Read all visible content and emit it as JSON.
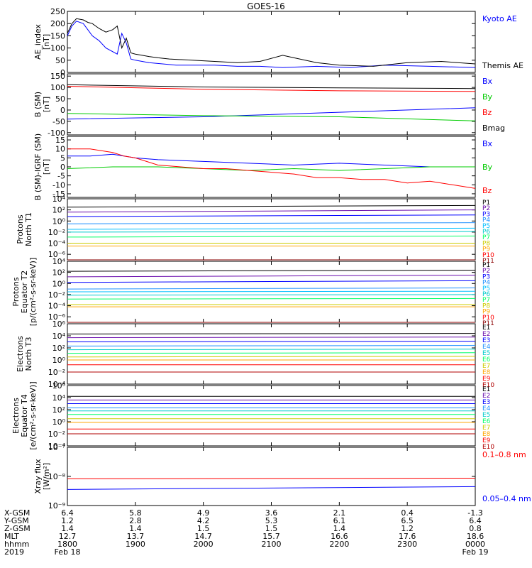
{
  "title": "GOES-16",
  "chart_data": [
    {
      "panel": "ae",
      "type": "line",
      "ylabel": [
        "AE_index",
        "[nT]"
      ],
      "ylim": [
        0,
        250
      ],
      "yscale": "linear",
      "yticks": [
        0,
        50,
        100,
        150,
        200,
        250
      ],
      "tick_labels": [
        "0",
        "50",
        "100",
        "150",
        "200",
        "250"
      ],
      "series": [
        {
          "name": "Kyoto AE",
          "color": "#0000ff",
          "x": [
            0,
            2,
            4,
            7,
            9,
            11,
            14,
            17,
            22,
            24,
            26,
            28,
            30,
            33,
            36,
            42,
            48,
            55,
            65,
            75,
            85,
            95,
            110,
            125,
            140,
            160,
            180
          ],
          "y": [
            150,
            190,
            210,
            200,
            175,
            150,
            130,
            100,
            75,
            160,
            120,
            55,
            50,
            45,
            40,
            35,
            30,
            30,
            30,
            25,
            25,
            20,
            25,
            20,
            30,
            25,
            20
          ]
        },
        {
          "name": "Themis AE",
          "color": "#000000",
          "x": [
            0,
            2,
            4,
            7,
            9,
            11,
            14,
            17,
            20,
            22,
            24,
            26,
            28,
            30,
            33,
            36,
            40,
            45,
            55,
            65,
            75,
            85,
            95,
            100,
            110,
            120,
            135,
            150,
            165,
            180
          ],
          "y": [
            160,
            200,
            220,
            215,
            205,
            200,
            180,
            165,
            175,
            190,
            100,
            140,
            80,
            75,
            70,
            65,
            60,
            55,
            50,
            45,
            40,
            45,
            70,
            60,
            40,
            30,
            25,
            40,
            45,
            35
          ]
        }
      ]
    },
    {
      "panel": "b_sm",
      "type": "line",
      "ylabel": [
        "B (SM)",
        "[nT]"
      ],
      "ylim": [
        -110,
        160
      ],
      "yscale": "linear",
      "yticks": [
        -100,
        -50,
        0,
        50,
        100,
        150
      ],
      "tick_labels": [
        "-100",
        "-50",
        "0",
        "50",
        "100",
        "150"
      ],
      "series": [
        {
          "name": "Bx",
          "color": "#0000ff",
          "x": [
            0,
            60,
            120,
            180
          ],
          "y": [
            -40,
            -30,
            -10,
            10
          ]
        },
        {
          "name": "By",
          "color": "#00cc00",
          "x": [
            0,
            60,
            120,
            180
          ],
          "y": [
            -15,
            -25,
            -30,
            -48
          ]
        },
        {
          "name": "Bz",
          "color": "#ff0000",
          "x": [
            0,
            60,
            120,
            180
          ],
          "y": [
            105,
            92,
            85,
            82
          ]
        },
        {
          "name": "Bmag",
          "color": "#000000",
          "x": [
            0,
            60,
            120,
            180
          ],
          "y": [
            112,
            102,
            98,
            95
          ]
        }
      ]
    },
    {
      "panel": "b_igrf",
      "type": "line",
      "ylabel": [
        "B (SM)-IGRF (SM)",
        "[nT]"
      ],
      "ylim": [
        -17,
        17
      ],
      "yscale": "linear",
      "yticks": [
        -15,
        -10,
        -5,
        0,
        5,
        10,
        15
      ],
      "tick_labels": [
        "-15",
        "-10",
        "-5",
        "0",
        "5",
        "10",
        "15"
      ],
      "series": [
        {
          "name": "Bx",
          "color": "#0000ff",
          "x": [
            0,
            10,
            20,
            30,
            40,
            60,
            80,
            100,
            120,
            140,
            160,
            180
          ],
          "y": [
            6,
            6,
            7,
            5,
            4,
            3,
            2,
            1,
            2,
            1,
            0,
            0
          ]
        },
        {
          "name": "By",
          "color": "#00cc00",
          "x": [
            0,
            20,
            40,
            60,
            80,
            100,
            120,
            140,
            160,
            180
          ],
          "y": [
            -1,
            0,
            0,
            -1,
            -2,
            -1,
            -2,
            -1,
            0,
            0
          ]
        },
        {
          "name": "Bz",
          "color": "#ff0000",
          "x": [
            0,
            10,
            20,
            25,
            30,
            40,
            50,
            60,
            70,
            80,
            90,
            100,
            110,
            120,
            130,
            140,
            150,
            160,
            170,
            180
          ],
          "y": [
            10,
            10,
            8,
            6,
            5,
            1,
            0,
            -1,
            -1,
            -2,
            -3,
            -4,
            -6,
            -6,
            -7,
            -7,
            -9,
            -8,
            -10,
            -12
          ]
        }
      ]
    },
    {
      "panel": "protons_t1",
      "type": "line",
      "ylabel": [
        "Protons",
        "North T1"
      ],
      "ylim": [
        -7,
        4
      ],
      "yscale": "log",
      "yticks": [
        4,
        2,
        0,
        -2,
        -4,
        -6
      ],
      "tick_labels": [
        "10⁴",
        "10²",
        "10⁰",
        "10⁻²",
        "10⁻⁴",
        "10⁻⁶"
      ],
      "series": [
        {
          "name": "P1",
          "color": "#000000",
          "x": [
            0,
            180
          ],
          "y": [
            2.5,
            2.8
          ]
        },
        {
          "name": "P2",
          "color": "#6a0dad",
          "x": [
            0,
            180
          ],
          "y": [
            1.6,
            2.0
          ]
        },
        {
          "name": "P3",
          "color": "#0000ff",
          "x": [
            0,
            180
          ],
          "y": [
            0.8,
            1.1
          ]
        },
        {
          "name": "P4",
          "color": "#1e90ff",
          "x": [
            0,
            180
          ],
          "y": [
            -0.5,
            -0.3
          ]
        },
        {
          "name": "P5",
          "color": "#00bfff",
          "x": [
            0,
            180
          ],
          "y": [
            -1.5,
            -1.3
          ]
        },
        {
          "name": "P6",
          "color": "#00cccc",
          "x": [
            0,
            180
          ],
          "y": [
            -2.0,
            -1.9
          ]
        },
        {
          "name": "P7",
          "color": "#00ff66",
          "x": [
            0,
            180
          ],
          "y": [
            -2.9,
            -2.7
          ]
        },
        {
          "name": "P8",
          "color": "#cccc00",
          "x": [
            0,
            180
          ],
          "y": [
            -4.0,
            -4.0
          ]
        },
        {
          "name": "P9",
          "color": "#ffa500",
          "x": [
            0,
            180
          ],
          "y": [
            -4.5,
            -4.5
          ]
        },
        {
          "name": "P10",
          "color": "#ff0000",
          "x": [
            0,
            180
          ],
          "y": [
            -7.5,
            -7.5
          ]
        },
        {
          "name": "P11",
          "color": "#8b0000",
          "x": [
            0,
            180
          ],
          "y": [
            -7.5,
            -7.5
          ]
        }
      ]
    },
    {
      "panel": "protons_t2",
      "type": "line",
      "ylabel": [
        "Protons",
        "Equator T2",
        "[p/(cm²-s-sr-keV)]"
      ],
      "ylim": [
        -7,
        4
      ],
      "yscale": "log",
      "yticks": [
        4,
        2,
        0,
        -2,
        -4,
        -6
      ],
      "tick_labels": [
        "10⁴",
        "10²",
        "10⁰",
        "10⁻²",
        "10⁻⁴",
        "10⁻⁶"
      ],
      "series": [
        {
          "name": "P1",
          "color": "#000000",
          "x": [
            0,
            180
          ],
          "y": [
            2.2,
            2.4
          ]
        },
        {
          "name": "P2",
          "color": "#6a0dad",
          "x": [
            0,
            180
          ],
          "y": [
            1.2,
            1.5
          ]
        },
        {
          "name": "P3",
          "color": "#0000ff",
          "x": [
            0,
            180
          ],
          "y": [
            0.2,
            0.5
          ]
        },
        {
          "name": "P4",
          "color": "#1e90ff",
          "x": [
            0,
            180
          ],
          "y": [
            -1.0,
            -0.8
          ]
        },
        {
          "name": "P5",
          "color": "#00bfff",
          "x": [
            0,
            180
          ],
          "y": [
            -1.5,
            -1.4
          ]
        },
        {
          "name": "P6",
          "color": "#00cccc",
          "x": [
            0,
            180
          ],
          "y": [
            -2.1,
            -2.0
          ]
        },
        {
          "name": "P7",
          "color": "#00ff66",
          "x": [
            0,
            180
          ],
          "y": [
            -2.8,
            -2.7
          ]
        },
        {
          "name": "P8",
          "color": "#cccc00",
          "x": [
            0,
            180
          ],
          "y": [
            -3.8,
            -3.8
          ]
        },
        {
          "name": "P9",
          "color": "#ffa500",
          "x": [
            0,
            180
          ],
          "y": [
            -4.2,
            -4.2
          ]
        },
        {
          "name": "P10",
          "color": "#ff0000",
          "x": [
            0,
            180
          ],
          "y": [
            -7.5,
            -7.5
          ]
        },
        {
          "name": "P11",
          "color": "#8b0000",
          "x": [
            0,
            180
          ],
          "y": [
            -7.5,
            -7.5
          ]
        }
      ]
    },
    {
      "panel": "electrons_t3",
      "type": "line",
      "ylabel": [
        "Electrons",
        "North T3"
      ],
      "ylim": [
        -4,
        6
      ],
      "yscale": "log",
      "yticks": [
        6,
        4,
        2,
        0,
        -2,
        -4
      ],
      "tick_labels": [
        "10⁶",
        "10⁴",
        "10²",
        "10⁰",
        "10⁻²",
        "10⁻⁴"
      ],
      "series": [
        {
          "name": "E1",
          "color": "#000000",
          "x": [
            0,
            180
          ],
          "y": [
            4.3,
            4.4
          ]
        },
        {
          "name": "E2",
          "color": "#6a0dad",
          "x": [
            0,
            180
          ],
          "y": [
            3.7,
            3.8
          ]
        },
        {
          "name": "E3",
          "color": "#0000ff",
          "x": [
            0,
            180
          ],
          "y": [
            3.0,
            3.1
          ]
        },
        {
          "name": "E4",
          "color": "#1e90ff",
          "x": [
            0,
            180
          ],
          "y": [
            2.3,
            2.4
          ]
        },
        {
          "name": "E5",
          "color": "#00cccc",
          "x": [
            0,
            180
          ],
          "y": [
            1.7,
            1.8
          ]
        },
        {
          "name": "E6",
          "color": "#00ff66",
          "x": [
            0,
            180
          ],
          "y": [
            1.1,
            1.2
          ]
        },
        {
          "name": "E7",
          "color": "#cccc00",
          "x": [
            0,
            180
          ],
          "y": [
            0.5,
            0.6
          ]
        },
        {
          "name": "E8",
          "color": "#ffa500",
          "x": [
            0,
            180
          ],
          "y": [
            0.0,
            0.0
          ]
        },
        {
          "name": "E9",
          "color": "#ff0000",
          "x": [
            0,
            180
          ],
          "y": [
            -0.8,
            -0.8
          ]
        },
        {
          "name": "E10",
          "color": "#b00000",
          "x": [
            0,
            180
          ],
          "y": [
            -2.0,
            -2.0
          ]
        }
      ]
    },
    {
      "panel": "electrons_t4",
      "type": "line",
      "ylabel": [
        "Electrons",
        "Equator T4",
        "[e/(cm²-s-sr-keV)]"
      ],
      "ylim": [
        -4,
        6
      ],
      "yscale": "log",
      "yticks": [
        6,
        4,
        2,
        0,
        -2,
        -4
      ],
      "tick_labels": [
        "10⁶",
        "10⁴",
        "10²",
        "10⁰",
        "10⁻²",
        "10⁻⁴"
      ],
      "series": [
        {
          "name": "E1",
          "color": "#000000",
          "x": [
            0,
            180
          ],
          "y": [
            4.2,
            4.2
          ]
        },
        {
          "name": "E2",
          "color": "#6a0dad",
          "x": [
            0,
            180
          ],
          "y": [
            3.6,
            3.6
          ]
        },
        {
          "name": "E3",
          "color": "#0000ff",
          "x": [
            0,
            180
          ],
          "y": [
            3.0,
            3.0
          ]
        },
        {
          "name": "E4",
          "color": "#1e90ff",
          "x": [
            0,
            180
          ],
          "y": [
            2.3,
            2.3
          ]
        },
        {
          "name": "E5",
          "color": "#00cccc",
          "x": [
            0,
            180
          ],
          "y": [
            1.8,
            1.8
          ]
        },
        {
          "name": "E6",
          "color": "#00ff66",
          "x": [
            0,
            180
          ],
          "y": [
            1.2,
            1.2
          ]
        },
        {
          "name": "E7",
          "color": "#cccc00",
          "x": [
            0,
            180
          ],
          "y": [
            0.5,
            0.5
          ]
        },
        {
          "name": "E8",
          "color": "#ffa500",
          "x": [
            0,
            180
          ],
          "y": [
            -0.1,
            -0.1
          ]
        },
        {
          "name": "E9",
          "color": "#ff0000",
          "x": [
            0,
            180
          ],
          "y": [
            -1.2,
            -1.2
          ]
        },
        {
          "name": "E10",
          "color": "#b00000",
          "x": [
            0,
            180
          ],
          "y": [
            -2.0,
            -2.0
          ]
        }
      ]
    },
    {
      "panel": "xray",
      "type": "line",
      "ylabel": [
        "Xray flux",
        "[W/m²]"
      ],
      "ylim": [
        -9,
        -7
      ],
      "yscale": "log",
      "yticks": [
        -7,
        -8,
        -9
      ],
      "tick_labels": [
        "10⁻⁷",
        "10⁻⁸",
        "10⁻⁹"
      ],
      "series": [
        {
          "name": "0.1–0.8 nm",
          "color": "#ff0000",
          "x": [
            0,
            180
          ],
          "y": [
            -8.08,
            -8.06
          ]
        },
        {
          "name": "0.05–0.4 nm",
          "color": "#0000ff",
          "x": [
            0,
            180
          ],
          "y": [
            -8.45,
            -8.35
          ]
        }
      ]
    }
  ],
  "x_axis": {
    "type": "line",
    "xlim": [
      0,
      180
    ],
    "unit": "minutes",
    "row_labels": [
      "X-GSM",
      "Y-GSM",
      "Z-GSM",
      "MLT",
      "hhmm",
      "2019"
    ],
    "ticks": [
      {
        "t": 0,
        "values": [
          "6.4",
          "1.2",
          "1.4",
          "12.7",
          "1800",
          "Feb 18"
        ]
      },
      {
        "t": 30,
        "values": [
          "5.8",
          "2.8",
          "1.4",
          "13.7",
          "1900",
          ""
        ]
      },
      {
        "t": 60,
        "values": [
          "4.9",
          "4.2",
          "1.5",
          "14.7",
          "2000",
          ""
        ]
      },
      {
        "t": 90,
        "values": [
          "3.6",
          "5.3",
          "1.5",
          "15.7",
          "2100",
          ""
        ]
      },
      {
        "t": 120,
        "values": [
          "2.1",
          "6.1",
          "1.4",
          "16.6",
          "2200",
          ""
        ]
      },
      {
        "t": 150,
        "values": [
          "0.4",
          "6.5",
          "1.2",
          "17.6",
          "2300",
          ""
        ]
      },
      {
        "t": 180,
        "values": [
          "-1.3",
          "6.4",
          "0.8",
          "18.6",
          "0000",
          "Feb 19"
        ]
      }
    ]
  }
}
